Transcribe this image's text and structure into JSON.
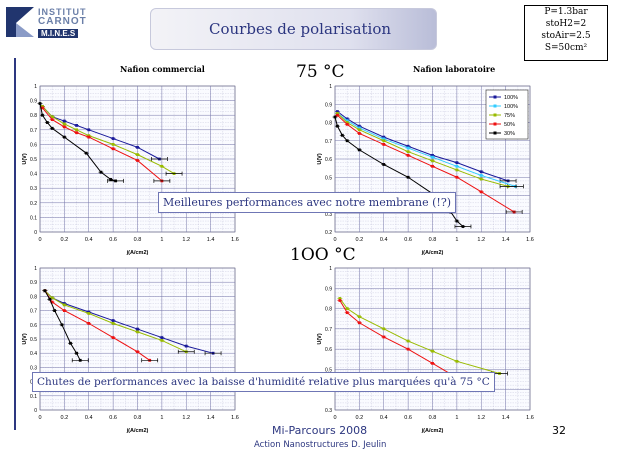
{
  "header": {
    "logo": {
      "line1": "INSTITUT",
      "line2": "CARNOT",
      "line3": "M.I.N.E.S"
    },
    "title": "Courbes de polarisation",
    "params": [
      "P=1.3bar",
      "stoH2=2",
      "stoAir=2.5",
      "S=50cm²"
    ]
  },
  "sections": {
    "t75": "75 °C",
    "t100": "1OO °C"
  },
  "subtitles": {
    "left": "Nafion commercial",
    "right": "Nafion laboratoire"
  },
  "callouts": {
    "c1": "Meilleures performances avec notre membrane (!?)",
    "c2": "Chutes de performances avec la baisse d'humidité relative plus marquées qu'à 75 °C"
  },
  "footer": {
    "line1": "Mi-Parcours 2008",
    "line2": "Action Nanostructures  D. Jeulin",
    "page": "32"
  },
  "colors": {
    "s100a": "#1a1a9a",
    "s100b": "#33ccff",
    "s75": "#99bb00",
    "s50": "#ee1111",
    "s30": "#000000"
  },
  "chart_data": [
    {
      "id": "tl",
      "type": "line",
      "xlabel": "j(A/cm2)",
      "ylabel": "U(V)",
      "xlim": [
        0,
        1.6
      ],
      "ylim": [
        0,
        1
      ],
      "xticks": [
        "0",
        "0.2",
        "0.4",
        "0.6",
        "0.8",
        "1",
        "1.2",
        "1.4",
        "1.6"
      ],
      "yticks": [
        "0",
        "0.1",
        "0.2",
        "0.3",
        "0.4",
        "0.5",
        "0.6",
        "0.7",
        "0.8",
        "0.9",
        "1"
      ],
      "series": [
        {
          "color": "#1a1a9a",
          "x": [
            0.02,
            0.1,
            0.2,
            0.3,
            0.4,
            0.6,
            0.8,
            0.98
          ],
          "y": [
            0.86,
            0.79,
            0.76,
            0.73,
            0.7,
            0.64,
            0.58,
            0.5
          ]
        },
        {
          "color": "#99bb00",
          "x": [
            0.02,
            0.1,
            0.2,
            0.3,
            0.4,
            0.6,
            0.8,
            1.0,
            1.1
          ],
          "y": [
            0.86,
            0.79,
            0.74,
            0.7,
            0.66,
            0.6,
            0.53,
            0.45,
            0.4
          ]
        },
        {
          "color": "#ee1111",
          "x": [
            0.02,
            0.1,
            0.2,
            0.3,
            0.4,
            0.6,
            0.8,
            1.0
          ],
          "y": [
            0.85,
            0.77,
            0.72,
            0.68,
            0.65,
            0.57,
            0.49,
            0.35
          ]
        },
        {
          "color": "#000000",
          "x": [
            0.0,
            0.02,
            0.06,
            0.1,
            0.2,
            0.38,
            0.5,
            0.58,
            0.62
          ],
          "y": [
            0.88,
            0.8,
            0.75,
            0.71,
            0.65,
            0.54,
            0.41,
            0.36,
            0.35
          ]
        }
      ]
    },
    {
      "id": "tr",
      "type": "line",
      "xlabel": "j(A/cm2)",
      "ylabel": "U(V)",
      "xlim": [
        0,
        1.6
      ],
      "ylim": [
        0.2,
        1
      ],
      "xticks": [
        "0",
        "0.2",
        "0.4",
        "0.6",
        "0.8",
        "1",
        "1.2",
        "1.4",
        "1.6"
      ],
      "yticks": [
        "0.2",
        "0.3",
        "0.4",
        "0.5",
        "0.6",
        "0.7",
        "0.8",
        "0.9",
        "1"
      ],
      "legend": [
        "100%",
        "100%",
        "75%",
        "50%",
        "30%"
      ],
      "series": [
        {
          "color": "#1a1a9a",
          "x": [
            0.02,
            0.1,
            0.2,
            0.4,
            0.6,
            0.8,
            1.0,
            1.2,
            1.42
          ],
          "y": [
            0.86,
            0.82,
            0.78,
            0.72,
            0.67,
            0.62,
            0.58,
            0.53,
            0.48
          ]
        },
        {
          "color": "#33ccff",
          "x": [
            0.02,
            0.1,
            0.2,
            0.4,
            0.6,
            0.8,
            1.0,
            1.2,
            1.48
          ],
          "y": [
            0.85,
            0.81,
            0.77,
            0.71,
            0.66,
            0.61,
            0.56,
            0.51,
            0.45
          ]
        },
        {
          "color": "#99bb00",
          "x": [
            0.02,
            0.1,
            0.2,
            0.4,
            0.6,
            0.8,
            1.0,
            1.2,
            1.42
          ],
          "y": [
            0.85,
            0.8,
            0.76,
            0.7,
            0.64,
            0.59,
            0.54,
            0.49,
            0.45
          ]
        },
        {
          "color": "#ee1111",
          "x": [
            0.02,
            0.1,
            0.2,
            0.4,
            0.6,
            0.8,
            1.0,
            1.2,
            1.47
          ],
          "y": [
            0.84,
            0.79,
            0.74,
            0.68,
            0.62,
            0.56,
            0.5,
            0.42,
            0.31
          ]
        },
        {
          "color": "#000000",
          "x": [
            0.0,
            0.02,
            0.06,
            0.1,
            0.2,
            0.4,
            0.6,
            0.8,
            0.95,
            1.0,
            1.05
          ],
          "y": [
            0.83,
            0.78,
            0.73,
            0.7,
            0.65,
            0.57,
            0.5,
            0.41,
            0.31,
            0.26,
            0.23
          ]
        }
      ]
    },
    {
      "id": "bl",
      "type": "line",
      "xlabel": "j(A/cm2)",
      "ylabel": "U(V)",
      "xlim": [
        0,
        1.6
      ],
      "ylim": [
        0,
        1
      ],
      "xticks": [
        "0",
        "0.2",
        "0.4",
        "0.6",
        "0.8",
        "1",
        "1.2",
        "1.4",
        "1.6"
      ],
      "yticks": [
        "0",
        "0.1",
        "0.2",
        "0.3",
        "0.4",
        "0.5",
        "0.6",
        "0.7",
        "0.8",
        "0.9",
        "1"
      ],
      "series": [
        {
          "color": "#1a1a9a",
          "x": [
            0.04,
            0.1,
            0.2,
            0.4,
            0.6,
            0.8,
            1.0,
            1.2,
            1.42
          ],
          "y": [
            0.84,
            0.79,
            0.75,
            0.69,
            0.63,
            0.57,
            0.51,
            0.45,
            0.4
          ]
        },
        {
          "color": "#99bb00",
          "x": [
            0.04,
            0.1,
            0.2,
            0.4,
            0.6,
            0.8,
            1.0,
            1.2
          ],
          "y": [
            0.84,
            0.79,
            0.74,
            0.68,
            0.61,
            0.55,
            0.49,
            0.41
          ]
        },
        {
          "color": "#ee1111",
          "x": [
            0.04,
            0.1,
            0.2,
            0.4,
            0.6,
            0.8,
            0.9
          ],
          "y": [
            0.84,
            0.76,
            0.7,
            0.61,
            0.51,
            0.41,
            0.35
          ]
        },
        {
          "color": "#000000",
          "x": [
            0.04,
            0.08,
            0.12,
            0.18,
            0.25,
            0.3,
            0.33
          ],
          "y": [
            0.84,
            0.78,
            0.7,
            0.6,
            0.47,
            0.4,
            0.35
          ]
        }
      ]
    },
    {
      "id": "br",
      "type": "line",
      "xlabel": "j(A/cm2)",
      "ylabel": "U(V)",
      "xlim": [
        0,
        1.6
      ],
      "ylim": [
        0.3,
        1
      ],
      "xticks": [
        "0",
        "0.2",
        "0.4",
        "0.6",
        "0.8",
        "1",
        "1.2",
        "1.4",
        "1.6"
      ],
      "yticks": [
        "0.3",
        "0.4",
        "0.5",
        "0.6",
        "0.7",
        "0.8",
        "0.9",
        "1"
      ],
      "series": [
        {
          "color": "#99bb00",
          "x": [
            0.04,
            0.1,
            0.2,
            0.4,
            0.6,
            0.8,
            1.0,
            1.35
          ],
          "y": [
            0.85,
            0.8,
            0.76,
            0.7,
            0.64,
            0.59,
            0.54,
            0.48
          ]
        },
        {
          "color": "#ee1111",
          "x": [
            0.04,
            0.1,
            0.2,
            0.4,
            0.6,
            0.8,
            0.97
          ],
          "y": [
            0.84,
            0.78,
            0.73,
            0.66,
            0.6,
            0.53,
            0.47
          ]
        }
      ]
    }
  ]
}
